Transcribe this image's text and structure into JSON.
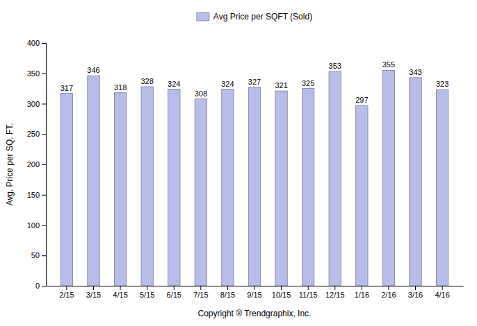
{
  "chart_data": {
    "type": "bar",
    "xlabel": "Copyright ® Trendgraphix, Inc.",
    "ylabel": "Avg. Price per SQ. FT.",
    "categories": [
      "2/15",
      "3/15",
      "4/15",
      "5/15",
      "6/15",
      "7/15",
      "8/15",
      "9/15",
      "10/15",
      "11/15",
      "12/15",
      "1/16",
      "2/16",
      "3/16",
      "4/16"
    ],
    "series": [
      {
        "name": "Avg Price per SQFT (Sold)",
        "color": "#b8bce8",
        "values": [
          317,
          346,
          318,
          328,
          324,
          308,
          324,
          327,
          321,
          325,
          353,
          297,
          355,
          343,
          323
        ]
      }
    ],
    "ylim": [
      0,
      400
    ],
    "yticks": [
      0,
      50,
      100,
      150,
      200,
      250,
      300,
      350,
      400
    ],
    "grid": false,
    "legend": "top",
    "data_labels": true
  }
}
